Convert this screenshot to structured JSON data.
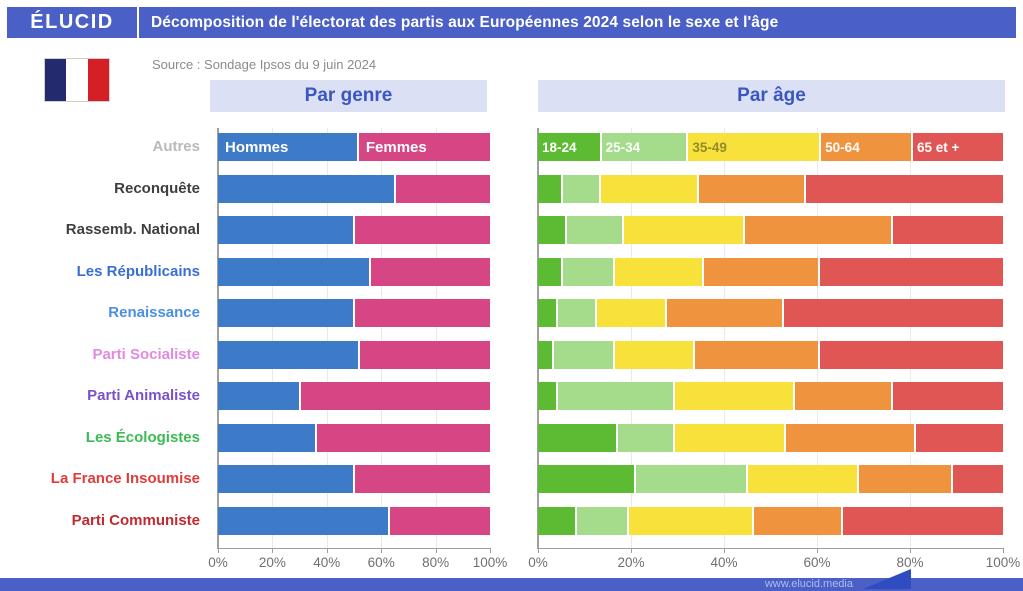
{
  "header": {
    "logo": "ÉLUCID",
    "title": "Décomposition de l'électorat des partis aux Européennes 2024 selon le sexe et l'âge"
  },
  "source": "Source : Sondage Ipsos du 9 juin 2024",
  "panels": {
    "gender": "Par genre",
    "age": "Par âge"
  },
  "footer": {
    "url": "www.elucid.media"
  },
  "colors": {
    "header_bg": "#4a60c6",
    "panel_bg": "#dbe0f5",
    "panel_text": "#3b56c0",
    "axis": "#9e9e9e",
    "grid": "#eaeaea",
    "tick_text": "#6f6f6f",
    "gender": [
      "#3d7ac7",
      "#d64685"
    ],
    "age": [
      "#5cbb33",
      "#a5dc8b",
      "#f9e13c",
      "#f0933e",
      "#e05654"
    ],
    "age_label_text": [
      "#ffffff",
      "#ffffff",
      "#8f8d2a",
      "#ffffff",
      "#ffffff"
    ],
    "flag": [
      "#232a6e",
      "#ffffff",
      "#d41f26"
    ],
    "footer_arrow": "#2f4cc0"
  },
  "chart_data": {
    "type": "bar",
    "subtype": "horizontal-stacked-100",
    "grid": "vertical lines at 20% steps",
    "x_ticks": [
      "0%",
      "20%",
      "40%",
      "60%",
      "80%",
      "100%"
    ],
    "xlim": [
      0,
      100
    ],
    "gender_series": [
      "Hommes",
      "Femmes"
    ],
    "age_series": [
      "18-24",
      "25-34",
      "35-49",
      "50-64",
      "65 et +"
    ],
    "legend_position": "inside first row (Autres)",
    "parties": [
      {
        "label": "Autres",
        "label_color": "#b9b9b9",
        "gender": [
          52,
          48
        ],
        "age": [
          9,
          18,
          36,
          20,
          17
        ]
      },
      {
        "label": "Reconquête",
        "label_color": "#3f3f3f",
        "gender": [
          65,
          35
        ],
        "age": [
          5,
          8,
          21,
          23,
          43
        ]
      },
      {
        "label": "Rassemb. National",
        "label_color": "#3f3f3f",
        "gender": [
          50,
          50
        ],
        "age": [
          6,
          12,
          26,
          32,
          24
        ]
      },
      {
        "label": "Les Républicains",
        "label_color": "#3a6ed4",
        "gender": [
          56,
          44
        ],
        "age": [
          5,
          11,
          19,
          25,
          40
        ]
      },
      {
        "label": "Renaissance",
        "label_color": "#4b8fe2",
        "gender": [
          50,
          50
        ],
        "age": [
          4,
          8,
          15,
          25,
          48
        ]
      },
      {
        "label": "Parti Socialiste",
        "label_color": "#e08ae2",
        "gender": [
          52,
          48
        ],
        "age": [
          3,
          13,
          17,
          27,
          40
        ]
      },
      {
        "label": "Parti Animaliste",
        "label_color": "#7b52c8",
        "gender": [
          30,
          70
        ],
        "age": [
          4,
          25,
          26,
          21,
          24
        ]
      },
      {
        "label": "Les Écologistes",
        "label_color": "#3cba55",
        "gender": [
          36,
          64
        ],
        "age": [
          17,
          12,
          24,
          28,
          19
        ]
      },
      {
        "label": "La France Insoumise",
        "label_color": "#e23b3b",
        "gender": [
          50,
          50
        ],
        "age": [
          21,
          24,
          24,
          20,
          11
        ]
      },
      {
        "label": "Parti Communiste",
        "label_color": "#c32a30",
        "gender": [
          63,
          37
        ],
        "age": [
          8,
          11,
          27,
          19,
          35
        ]
      }
    ]
  }
}
